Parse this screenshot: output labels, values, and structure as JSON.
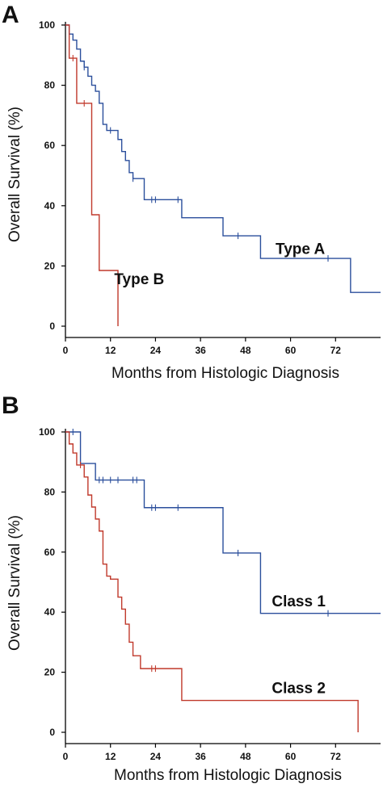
{
  "colors": {
    "blue": "#2b4f9c",
    "red": "#c0392b",
    "axis": "#000000"
  },
  "chart_data": [
    {
      "panel": "A",
      "type": "line",
      "step": true,
      "xlabel": "Months from Histologic Diagnosis",
      "ylabel": "Overall Survival (%)",
      "xlim": [
        0,
        84
      ],
      "ylim": [
        0,
        100
      ],
      "xticks": [
        0,
        12,
        24,
        36,
        48,
        60,
        72
      ],
      "yticks": [
        0,
        20,
        40,
        60,
        80,
        100
      ],
      "grid": false,
      "series": [
        {
          "name": "Type A",
          "color": "#2b4f9c",
          "x": [
            0,
            1,
            2,
            3,
            4,
            5,
            6,
            7,
            8,
            9,
            10,
            11,
            14,
            15,
            16,
            17,
            18,
            21,
            31,
            42,
            52,
            76,
            84
          ],
          "y": [
            100,
            97,
            95,
            92,
            88,
            86,
            83,
            80,
            78,
            74,
            67,
            65,
            62,
            58,
            55,
            51,
            49,
            42,
            36,
            30,
            22.5,
            11.2,
            11.2
          ],
          "censored": [
            [
              5,
              86
            ],
            [
              12,
              65
            ],
            [
              18,
              49
            ],
            [
              23,
              42
            ],
            [
              24,
              42
            ],
            [
              30,
              42
            ],
            [
              46,
              30
            ],
            [
              70,
              22.5
            ]
          ]
        },
        {
          "name": "Type B",
          "color": "#c0392b",
          "x": [
            0,
            1,
            3,
            7,
            9,
            14
          ],
          "y": [
            100,
            89,
            74,
            37,
            18.5,
            0
          ],
          "censored": [
            [
              2,
              89
            ],
            [
              5,
              74
            ]
          ]
        }
      ],
      "labels": [
        {
          "text": "Type A",
          "x": 56,
          "y": 24
        },
        {
          "text": "Type B",
          "x": 13,
          "y": 14
        }
      ]
    },
    {
      "panel": "B",
      "type": "line",
      "step": true,
      "xlabel": "Months from Histologic Diagnosis",
      "ylabel": "Overall Survival (%)",
      "xlim": [
        0,
        84
      ],
      "ylim": [
        0,
        100
      ],
      "xticks": [
        0,
        12,
        24,
        36,
        48,
        60,
        72
      ],
      "yticks": [
        0,
        20,
        40,
        60,
        80,
        100
      ],
      "grid": false,
      "series": [
        {
          "name": "Class 1",
          "color": "#2b4f9c",
          "x": [
            0,
            4,
            8,
            21,
            42,
            52,
            84
          ],
          "y": [
            100,
            89.5,
            84,
            74.8,
            59.7,
            39.6,
            39.6
          ],
          "censored": [
            [
              2,
              100
            ],
            [
              9,
              84
            ],
            [
              10,
              84
            ],
            [
              12,
              84
            ],
            [
              14,
              84
            ],
            [
              18,
              84
            ],
            [
              19,
              84
            ],
            [
              23,
              74.8
            ],
            [
              24,
              74.8
            ],
            [
              30,
              74.8
            ],
            [
              46,
              59.7
            ],
            [
              70,
              39.6
            ]
          ]
        },
        {
          "name": "Class 2",
          "color": "#c0392b",
          "x": [
            0,
            1,
            2,
            3,
            5,
            6,
            7,
            8,
            9,
            10,
            11,
            12,
            14,
            15,
            16,
            17,
            18,
            20,
            31,
            78
          ],
          "y": [
            100,
            96,
            93,
            89,
            85,
            79,
            75,
            71,
            67,
            56,
            52,
            51,
            45,
            41,
            36,
            30,
            25.5,
            21.2,
            10.6,
            0
          ],
          "censored": [
            [
              4,
              89
            ],
            [
              23,
              21.2
            ],
            [
              24,
              21.2
            ]
          ]
        }
      ],
      "labels": [
        {
          "text": "Class 1",
          "x": 55,
          "y": 42
        },
        {
          "text": "Class 2",
          "x": 55,
          "y": 13
        }
      ]
    }
  ]
}
